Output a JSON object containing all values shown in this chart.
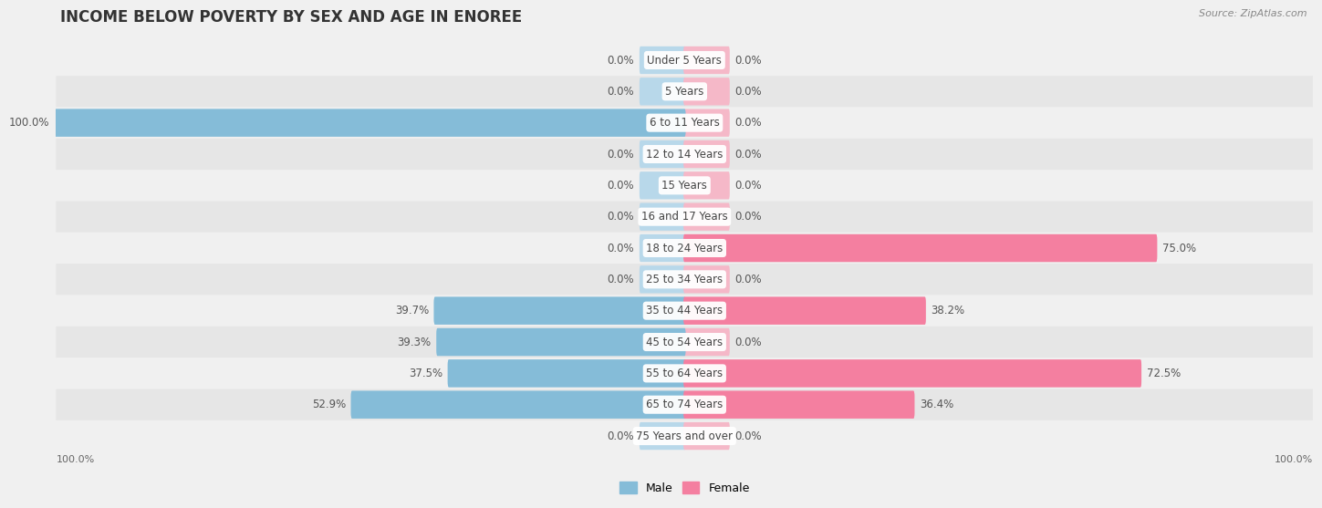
{
  "title": "INCOME BELOW POVERTY BY SEX AND AGE IN ENOREE",
  "source": "Source: ZipAtlas.com",
  "categories": [
    "Under 5 Years",
    "5 Years",
    "6 to 11 Years",
    "12 to 14 Years",
    "15 Years",
    "16 and 17 Years",
    "18 to 24 Years",
    "25 to 34 Years",
    "35 to 44 Years",
    "45 to 54 Years",
    "55 to 64 Years",
    "65 to 74 Years",
    "75 Years and over"
  ],
  "male": [
    0.0,
    0.0,
    100.0,
    0.0,
    0.0,
    0.0,
    0.0,
    0.0,
    39.7,
    39.3,
    37.5,
    52.9,
    0.0
  ],
  "female": [
    0.0,
    0.0,
    0.0,
    0.0,
    0.0,
    0.0,
    75.0,
    0.0,
    38.2,
    0.0,
    72.5,
    36.4,
    0.0
  ],
  "male_color": "#85bcd8",
  "female_color": "#f47fa0",
  "male_bg_color": "#b8d8ea",
  "female_bg_color": "#f5b8c8",
  "row_bg_colors": [
    "#f0f0f0",
    "#e6e6e6"
  ],
  "background_color": "#f0f0f0",
  "max_value": 100.0,
  "bar_height": 0.52,
  "min_bar_width": 7.0,
  "title_fontsize": 12,
  "label_fontsize": 8.5,
  "category_fontsize": 8.5,
  "source_fontsize": 8
}
